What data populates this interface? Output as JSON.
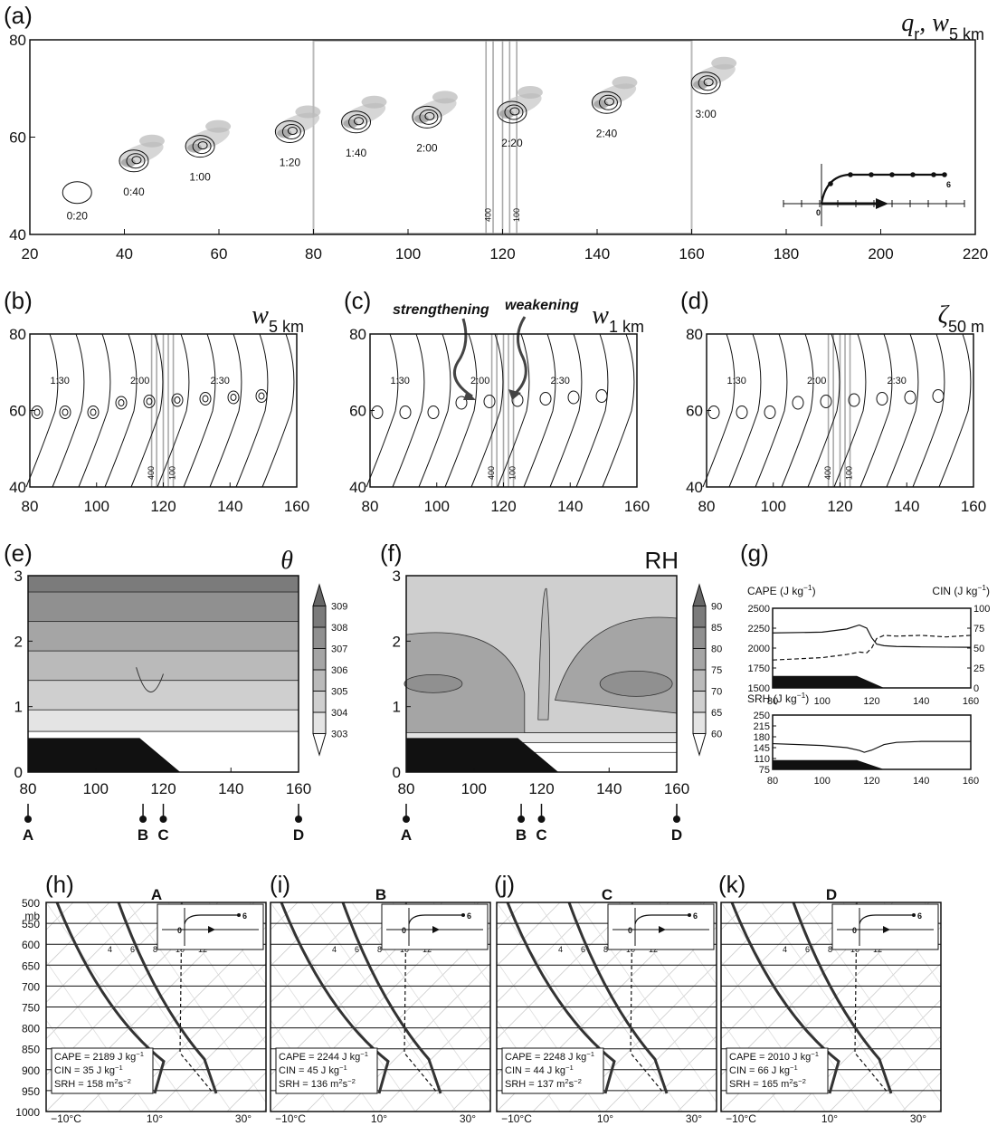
{
  "chart_data": [
    {
      "panel": "(a)",
      "type": "scatter",
      "title_var": "q",
      "title_sub1": "r",
      "title_var2": ", w",
      "title_sub2": "5 km",
      "xlim": [
        20,
        220
      ],
      "ylim": [
        40,
        80
      ],
      "xticks": [
        "20",
        "40",
        "60",
        "80",
        "100",
        "120",
        "140",
        "160",
        "180",
        "200",
        "220"
      ],
      "yticks": [
        "40",
        "60",
        "80"
      ],
      "cells": [
        {
          "time": "0:20",
          "x": 30,
          "y": 47.5
        },
        {
          "time": "0:40",
          "x": 42,
          "y": 54
        },
        {
          "time": "1:00",
          "x": 56,
          "y": 57
        },
        {
          "time": "1:20",
          "x": 75,
          "y": 60
        },
        {
          "time": "1:40",
          "x": 89,
          "y": 62
        },
        {
          "time": "2:00",
          "x": 104,
          "y": 63
        },
        {
          "time": "2:20",
          "x": 122,
          "y": 64
        },
        {
          "time": "2:40",
          "x": 142,
          "y": 66
        },
        {
          "time": "3:00",
          "x": 163,
          "y": 70
        }
      ],
      "terrain_labels": [
        "400",
        "100"
      ],
      "hodo_labels": [
        "0",
        "6"
      ]
    },
    {
      "panel": "(b)",
      "type": "line",
      "title_var": "w",
      "title_sub": "5 km",
      "xlim": [
        80,
        160
      ],
      "ylim": [
        40,
        80
      ],
      "xticks": [
        "80",
        "100",
        "120",
        "140",
        "160"
      ],
      "yticks": [
        "40",
        "60",
        "80"
      ],
      "times": [
        "1:30",
        "2:00",
        "2:30"
      ]
    },
    {
      "panel": "(c)",
      "type": "line",
      "title_var": "w",
      "title_sub": "1 km",
      "xlim": [
        80,
        160
      ],
      "ylim": [
        40,
        80
      ],
      "xticks": [
        "80",
        "100",
        "120",
        "140",
        "160"
      ],
      "yticks": [
        "40",
        "60",
        "80"
      ],
      "times": [
        "1:30",
        "2:00",
        "2:30"
      ],
      "annotations": [
        "strengthening",
        "weakening"
      ]
    },
    {
      "panel": "(d)",
      "type": "line",
      "title_var": "ζ",
      "title_sub": "50 m",
      "xlim": [
        80,
        160
      ],
      "ylim": [
        40,
        80
      ],
      "xticks": [
        "80",
        "100",
        "120",
        "140",
        "160"
      ],
      "yticks": [
        "40",
        "60",
        "80"
      ],
      "times": [
        "1:30",
        "2:00",
        "2:30"
      ]
    },
    {
      "panel": "(e)",
      "type": "heatmap",
      "title_var": "θ",
      "xlim": [
        80,
        160
      ],
      "ylim": [
        0,
        3
      ],
      "xticks": [
        "80",
        "100",
        "120",
        "140",
        "160"
      ],
      "yticks": [
        "0",
        "1",
        "2",
        "3"
      ],
      "colorbar": [
        "303",
        "304",
        "305",
        "306",
        "307",
        "308",
        "309"
      ],
      "points": [
        {
          "name": "A",
          "x": 80
        },
        {
          "name": "B",
          "x": 114
        },
        {
          "name": "C",
          "x": 120
        },
        {
          "name": "D",
          "x": 160
        }
      ]
    },
    {
      "panel": "(f)",
      "type": "heatmap",
      "title": "RH",
      "xlim": [
        80,
        160
      ],
      "ylim": [
        0,
        3
      ],
      "xticks": [
        "80",
        "100",
        "120",
        "140",
        "160"
      ],
      "yticks": [
        "0",
        "1",
        "2",
        "3"
      ],
      "colorbar": [
        "60",
        "65",
        "70",
        "75",
        "80",
        "85",
        "90"
      ],
      "points": [
        {
          "name": "A",
          "x": 80
        },
        {
          "name": "B",
          "x": 114
        },
        {
          "name": "C",
          "x": 120
        },
        {
          "name": "D",
          "x": 160
        }
      ]
    },
    {
      "panel": "(g)",
      "type": "line",
      "top": {
        "label_left": "CAPE (J kg",
        "label_left_sup": "−1",
        "label_left_end": ")",
        "label_right": "CIN (J kg",
        "label_right_sup": "−1",
        "label_right_end": ")",
        "yticks_left": [
          "1500",
          "1750",
          "2000",
          "2250",
          "2500"
        ],
        "yticks_right": [
          "0",
          "25",
          "50",
          "75",
          "100"
        ],
        "xticks": [
          "80",
          "100",
          "120",
          "140",
          "160"
        ],
        "cape_x": [
          80,
          100,
          110,
          115,
          118,
          120,
          122,
          125,
          130,
          140,
          150,
          160
        ],
        "cape": [
          2190,
          2200,
          2240,
          2290,
          2250,
          2130,
          2050,
          2030,
          2020,
          2015,
          2012,
          2010
        ],
        "cin_x": [
          80,
          100,
          110,
          115,
          118,
          120,
          122,
          125,
          130,
          140,
          150,
          160
        ],
        "cin": [
          35,
          38,
          42,
          45,
          44,
          50,
          62,
          66,
          65,
          66,
          64,
          66
        ]
      },
      "bottom": {
        "label": "SRH (J kg",
        "label_sup": "−1",
        "label_end": ")",
        "yticks": [
          "75",
          "110",
          "145",
          "180",
          "215",
          "250"
        ],
        "xticks": [
          "80",
          "100",
          "120",
          "140",
          "160"
        ],
        "x": [
          80,
          100,
          110,
          115,
          117,
          120,
          125,
          130,
          140,
          150,
          160
        ],
        "srh": [
          158,
          152,
          145,
          136,
          130,
          137,
          155,
          162,
          165,
          165,
          165
        ]
      }
    },
    {
      "panel": "(h)",
      "type": "line",
      "title": "A",
      "cape": "CAPE = 2189 J kg",
      "cin": "CIN = 35 J kg",
      "srh": "SRH = 158 m",
      "srh_mid": "s"
    },
    {
      "panel": "(i)",
      "type": "line",
      "title": "B",
      "cape": "CAPE = 2244 J kg",
      "cin": "CIN = 45 J kg",
      "srh": "SRH = 136 m",
      "srh_mid": "s"
    },
    {
      "panel": "(j)",
      "type": "line",
      "title": "C",
      "cape": "CAPE = 2248 J kg",
      "cin": "CIN = 44 J kg",
      "srh": "SRH = 137 m",
      "srh_mid": "s"
    },
    {
      "panel": "(k)",
      "type": "line",
      "title": "D",
      "cape": "CAPE = 2010 J kg",
      "cin": "CIN = 66 J kg",
      "srh": "SRH = 165 m",
      "srh_mid": "s"
    }
  ],
  "skewt": {
    "pressure_ticks": [
      "500",
      "550",
      "600",
      "650",
      "700",
      "750",
      "800",
      "850",
      "900",
      "950",
      "1000"
    ],
    "unit": "mb",
    "temp_ticks": [
      "−10°C",
      "10°",
      "30°"
    ],
    "mixing_ratio_labels": [
      "4",
      "6",
      "8",
      "10",
      "12"
    ],
    "sup_minus1": "−1",
    "sup_minus2": "−2",
    "sup_2": "2"
  }
}
